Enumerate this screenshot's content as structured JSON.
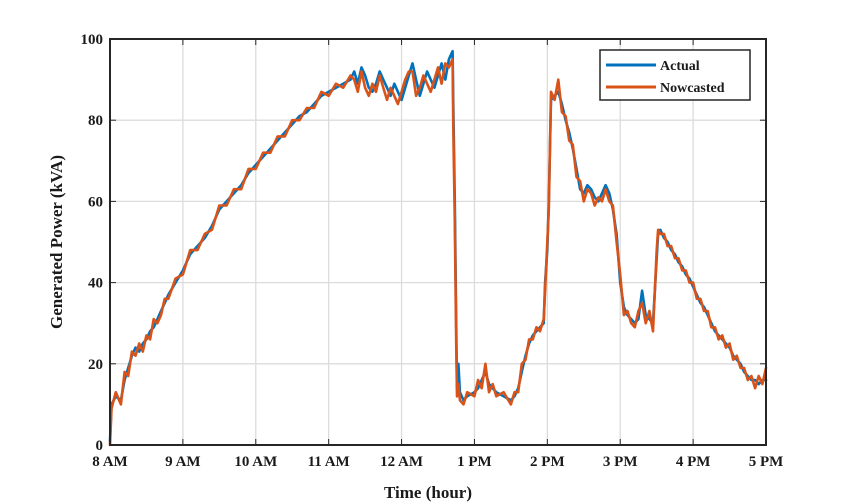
{
  "chart_data": {
    "type": "line",
    "xlabel": "Time (hour)",
    "ylabel": "Generated Power (kVA)",
    "xlim": [
      8,
      17
    ],
    "ylim": [
      0,
      100
    ],
    "x_ticks": [
      {
        "value": 8,
        "label": "8 AM"
      },
      {
        "value": 9,
        "label": "9 AM"
      },
      {
        "value": 10,
        "label": "10 AM"
      },
      {
        "value": 11,
        "label": "11 AM"
      },
      {
        "value": 12,
        "label": "12 AM"
      },
      {
        "value": 13,
        "label": "1 PM"
      },
      {
        "value": 14,
        "label": "2 PM"
      },
      {
        "value": 15,
        "label": "3 PM"
      },
      {
        "value": 16,
        "label": "4 PM"
      },
      {
        "value": 17,
        "label": "5 PM"
      }
    ],
    "y_ticks": [
      0,
      20,
      40,
      60,
      80,
      100
    ],
    "grid": true,
    "legend_position": "top-right",
    "series": [
      {
        "name": "Actual",
        "color": "#0072BD",
        "points": [
          [
            8.0,
            1
          ],
          [
            8.02,
            10
          ],
          [
            8.08,
            12
          ],
          [
            8.15,
            11
          ],
          [
            8.2,
            16
          ],
          [
            8.25,
            19
          ],
          [
            8.3,
            22
          ],
          [
            8.35,
            24
          ],
          [
            8.4,
            23
          ],
          [
            8.45,
            25
          ],
          [
            8.5,
            26
          ],
          [
            8.55,
            28
          ],
          [
            8.6,
            29
          ],
          [
            8.65,
            31
          ],
          [
            8.7,
            33
          ],
          [
            8.75,
            35
          ],
          [
            8.8,
            37
          ],
          [
            8.9,
            40
          ],
          [
            9.0,
            43
          ],
          [
            9.1,
            47
          ],
          [
            9.2,
            49
          ],
          [
            9.3,
            51
          ],
          [
            9.4,
            54
          ],
          [
            9.5,
            58
          ],
          [
            9.6,
            60
          ],
          [
            9.7,
            62
          ],
          [
            9.8,
            64
          ],
          [
            9.9,
            67
          ],
          [
            10.0,
            69
          ],
          [
            10.1,
            71
          ],
          [
            10.2,
            73
          ],
          [
            10.3,
            75
          ],
          [
            10.4,
            77
          ],
          [
            10.5,
            79
          ],
          [
            10.6,
            81
          ],
          [
            10.7,
            82
          ],
          [
            10.8,
            84
          ],
          [
            10.9,
            86
          ],
          [
            11.0,
            87
          ],
          [
            11.1,
            88
          ],
          [
            11.2,
            89
          ],
          [
            11.3,
            90
          ],
          [
            11.35,
            92
          ],
          [
            11.4,
            89
          ],
          [
            11.45,
            93
          ],
          [
            11.5,
            91
          ],
          [
            11.55,
            88
          ],
          [
            11.6,
            87
          ],
          [
            11.65,
            89
          ],
          [
            11.7,
            92
          ],
          [
            11.75,
            90
          ],
          [
            11.8,
            88
          ],
          [
            11.85,
            86
          ],
          [
            11.9,
            89
          ],
          [
            11.95,
            87
          ],
          [
            12.0,
            85
          ],
          [
            12.05,
            88
          ],
          [
            12.1,
            91
          ],
          [
            12.15,
            94
          ],
          [
            12.2,
            90
          ],
          [
            12.25,
            86
          ],
          [
            12.3,
            89
          ],
          [
            12.35,
            92
          ],
          [
            12.4,
            90
          ],
          [
            12.45,
            88
          ],
          [
            12.5,
            91
          ],
          [
            12.55,
            94
          ],
          [
            12.6,
            90
          ],
          [
            12.65,
            95
          ],
          [
            12.7,
            97
          ],
          [
            12.71,
            84
          ],
          [
            12.73,
            60
          ],
          [
            12.75,
            30
          ],
          [
            12.76,
            14
          ],
          [
            12.78,
            20
          ],
          [
            12.8,
            13
          ],
          [
            12.85,
            11
          ],
          [
            12.9,
            12
          ],
          [
            13.0,
            13
          ],
          [
            13.05,
            14
          ],
          [
            13.1,
            16
          ],
          [
            13.15,
            18
          ],
          [
            13.2,
            15
          ],
          [
            13.25,
            14
          ],
          [
            13.3,
            13
          ],
          [
            13.4,
            12
          ],
          [
            13.5,
            11
          ],
          [
            13.55,
            12
          ],
          [
            13.6,
            14
          ],
          [
            13.65,
            18
          ],
          [
            13.7,
            22
          ],
          [
            13.75,
            25
          ],
          [
            13.8,
            27
          ],
          [
            13.85,
            28
          ],
          [
            13.9,
            29
          ],
          [
            13.95,
            30
          ],
          [
            13.97,
            40
          ],
          [
            14.0,
            48
          ],
          [
            14.02,
            60
          ],
          [
            14.05,
            85
          ],
          [
            14.1,
            86
          ],
          [
            14.15,
            87
          ],
          [
            14.2,
            84
          ],
          [
            14.25,
            80
          ],
          [
            14.3,
            77
          ],
          [
            14.35,
            73
          ],
          [
            14.4,
            68
          ],
          [
            14.45,
            63
          ],
          [
            14.5,
            62
          ],
          [
            14.55,
            64
          ],
          [
            14.6,
            63
          ],
          [
            14.65,
            61
          ],
          [
            14.7,
            60
          ],
          [
            14.75,
            62
          ],
          [
            14.8,
            64
          ],
          [
            14.85,
            62
          ],
          [
            14.9,
            58
          ],
          [
            14.95,
            52
          ],
          [
            15.0,
            40
          ],
          [
            15.05,
            34
          ],
          [
            15.1,
            32
          ],
          [
            15.15,
            31
          ],
          [
            15.2,
            30
          ],
          [
            15.25,
            31
          ],
          [
            15.3,
            38
          ],
          [
            15.35,
            32
          ],
          [
            15.4,
            31
          ],
          [
            15.45,
            30
          ],
          [
            15.5,
            46
          ],
          [
            15.52,
            52
          ],
          [
            15.55,
            53
          ],
          [
            15.6,
            51
          ],
          [
            15.65,
            50
          ],
          [
            15.7,
            48
          ],
          [
            15.75,
            47
          ],
          [
            15.8,
            45
          ],
          [
            15.85,
            44
          ],
          [
            15.9,
            42
          ],
          [
            15.95,
            41
          ],
          [
            16.0,
            39
          ],
          [
            16.05,
            37
          ],
          [
            16.1,
            35
          ],
          [
            16.15,
            34
          ],
          [
            16.2,
            32
          ],
          [
            16.25,
            30
          ],
          [
            16.3,
            28
          ],
          [
            16.35,
            27
          ],
          [
            16.4,
            26
          ],
          [
            16.45,
            25
          ],
          [
            16.5,
            24
          ],
          [
            16.55,
            22
          ],
          [
            16.6,
            21
          ],
          [
            16.65,
            20
          ],
          [
            16.7,
            18
          ],
          [
            16.75,
            17
          ],
          [
            16.8,
            16
          ],
          [
            16.85,
            16
          ],
          [
            16.9,
            15
          ],
          [
            16.95,
            16
          ],
          [
            17.0,
            16
          ]
        ]
      },
      {
        "name": "Nowcasted",
        "color": "#D95319",
        "points": [
          [
            8.0,
            0
          ],
          [
            8.02,
            9
          ],
          [
            8.08,
            13
          ],
          [
            8.15,
            10
          ],
          [
            8.2,
            18
          ],
          [
            8.25,
            17
          ],
          [
            8.3,
            23
          ],
          [
            8.35,
            22
          ],
          [
            8.4,
            25
          ],
          [
            8.45,
            23
          ],
          [
            8.5,
            27
          ],
          [
            8.55,
            26
          ],
          [
            8.6,
            31
          ],
          [
            8.65,
            30
          ],
          [
            8.7,
            32
          ],
          [
            8.75,
            36
          ],
          [
            8.8,
            36
          ],
          [
            8.9,
            41
          ],
          [
            9.0,
            42
          ],
          [
            9.1,
            48
          ],
          [
            9.2,
            48
          ],
          [
            9.3,
            52
          ],
          [
            9.4,
            53
          ],
          [
            9.5,
            59
          ],
          [
            9.6,
            59
          ],
          [
            9.7,
            63
          ],
          [
            9.8,
            63
          ],
          [
            9.9,
            68
          ],
          [
            10.0,
            68
          ],
          [
            10.1,
            72
          ],
          [
            10.2,
            72
          ],
          [
            10.3,
            76
          ],
          [
            10.4,
            76
          ],
          [
            10.5,
            80
          ],
          [
            10.6,
            80
          ],
          [
            10.7,
            83
          ],
          [
            10.8,
            83
          ],
          [
            10.9,
            87
          ],
          [
            11.0,
            86
          ],
          [
            11.1,
            89
          ],
          [
            11.2,
            88
          ],
          [
            11.3,
            91
          ],
          [
            11.35,
            90
          ],
          [
            11.4,
            87
          ],
          [
            11.45,
            92
          ],
          [
            11.5,
            88
          ],
          [
            11.55,
            86
          ],
          [
            11.6,
            89
          ],
          [
            11.65,
            87
          ],
          [
            11.7,
            91
          ],
          [
            11.75,
            88
          ],
          [
            11.8,
            85
          ],
          [
            11.85,
            88
          ],
          [
            11.9,
            86
          ],
          [
            11.95,
            84
          ],
          [
            12.0,
            87
          ],
          [
            12.05,
            90
          ],
          [
            12.1,
            92
          ],
          [
            12.15,
            92
          ],
          [
            12.2,
            86
          ],
          [
            12.25,
            88
          ],
          [
            12.3,
            91
          ],
          [
            12.35,
            89
          ],
          [
            12.4,
            87
          ],
          [
            12.45,
            90
          ],
          [
            12.5,
            93
          ],
          [
            12.55,
            89
          ],
          [
            12.6,
            94
          ],
          [
            12.65,
            93
          ],
          [
            12.7,
            95
          ],
          [
            12.71,
            78
          ],
          [
            12.73,
            55
          ],
          [
            12.75,
            25
          ],
          [
            12.76,
            12
          ],
          [
            12.78,
            15
          ],
          [
            12.8,
            11
          ],
          [
            12.85,
            10
          ],
          [
            12.9,
            13
          ],
          [
            13.0,
            12
          ],
          [
            13.05,
            16
          ],
          [
            13.1,
            14
          ],
          [
            13.15,
            20
          ],
          [
            13.2,
            13
          ],
          [
            13.25,
            15
          ],
          [
            13.3,
            12
          ],
          [
            13.4,
            13
          ],
          [
            13.5,
            10
          ],
          [
            13.55,
            13
          ],
          [
            13.6,
            13
          ],
          [
            13.65,
            20
          ],
          [
            13.7,
            21
          ],
          [
            13.75,
            26
          ],
          [
            13.8,
            26
          ],
          [
            13.85,
            29
          ],
          [
            13.9,
            28
          ],
          [
            13.95,
            31
          ],
          [
            13.97,
            38
          ],
          [
            14.0,
            50
          ],
          [
            14.02,
            58
          ],
          [
            14.05,
            87
          ],
          [
            14.1,
            85
          ],
          [
            14.15,
            90
          ],
          [
            14.2,
            82
          ],
          [
            14.25,
            81
          ],
          [
            14.3,
            75
          ],
          [
            14.35,
            74
          ],
          [
            14.4,
            66
          ],
          [
            14.45,
            65
          ],
          [
            14.5,
            60
          ],
          [
            14.55,
            63
          ],
          [
            14.6,
            62
          ],
          [
            14.65,
            59
          ],
          [
            14.7,
            61
          ],
          [
            14.75,
            60
          ],
          [
            14.8,
            63
          ],
          [
            14.85,
            60
          ],
          [
            14.9,
            59
          ],
          [
            14.95,
            50
          ],
          [
            15.0,
            42
          ],
          [
            15.05,
            32
          ],
          [
            15.1,
            33
          ],
          [
            15.15,
            30
          ],
          [
            15.2,
            29
          ],
          [
            15.25,
            33
          ],
          [
            15.3,
            35
          ],
          [
            15.35,
            30
          ],
          [
            15.4,
            33
          ],
          [
            15.45,
            28
          ],
          [
            15.5,
            48
          ],
          [
            15.52,
            53
          ],
          [
            15.55,
            52
          ],
          [
            15.6,
            52
          ],
          [
            15.65,
            49
          ],
          [
            15.7,
            49
          ],
          [
            15.75,
            46
          ],
          [
            15.8,
            46
          ],
          [
            15.85,
            43
          ],
          [
            15.9,
            43
          ],
          [
            15.95,
            40
          ],
          [
            16.0,
            40
          ],
          [
            16.05,
            36
          ],
          [
            16.1,
            36
          ],
          [
            16.15,
            33
          ],
          [
            16.2,
            33
          ],
          [
            16.25,
            29
          ],
          [
            16.3,
            29
          ],
          [
            16.35,
            26
          ],
          [
            16.4,
            27
          ],
          [
            16.45,
            24
          ],
          [
            16.5,
            25
          ],
          [
            16.55,
            21
          ],
          [
            16.6,
            22
          ],
          [
            16.65,
            19
          ],
          [
            16.7,
            19
          ],
          [
            16.75,
            16
          ],
          [
            16.8,
            17
          ],
          [
            16.85,
            14
          ],
          [
            16.9,
            17
          ],
          [
            16.95,
            15
          ],
          [
            17.0,
            19
          ]
        ]
      }
    ]
  }
}
